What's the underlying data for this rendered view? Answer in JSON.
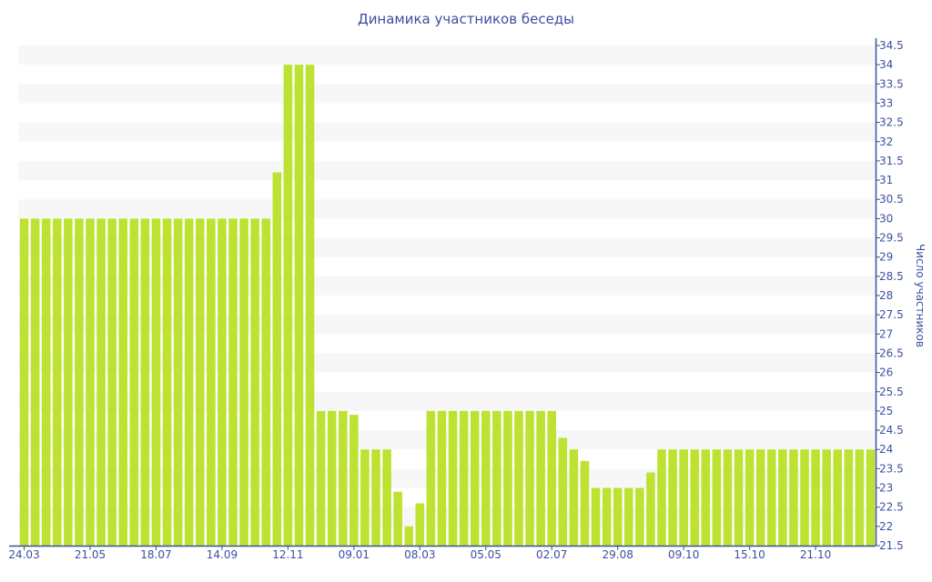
{
  "chart_data": {
    "type": "bar",
    "title": "Динамика участников беседы",
    "xlabel": "",
    "ylabel": "Число участников",
    "ylim": [
      21.5,
      34.5
    ],
    "ytick_step": 0.5,
    "y_axis_position": "right",
    "grid": "alternating horizontal bands",
    "bar_color": "#bde232",
    "axis_color": "#3d4f9f",
    "x_tick_labels": [
      {
        "index": 0,
        "label": "24.03"
      },
      {
        "index": 6,
        "label": "21.05"
      },
      {
        "index": 12,
        "label": "18.07"
      },
      {
        "index": 18,
        "label": "14.09"
      },
      {
        "index": 24,
        "label": "12.11"
      },
      {
        "index": 30,
        "label": "09.01"
      },
      {
        "index": 36,
        "label": "08.03"
      },
      {
        "index": 42,
        "label": "05.05"
      },
      {
        "index": 48,
        "label": "02.07"
      },
      {
        "index": 54,
        "label": "29.08"
      },
      {
        "index": 60,
        "label": "09.10"
      },
      {
        "index": 66,
        "label": "15.10"
      },
      {
        "index": 72,
        "label": "21.10"
      }
    ],
    "values": [
      30,
      30,
      30,
      30,
      30,
      30,
      30,
      30,
      30,
      30,
      30,
      30,
      30,
      30,
      30,
      30,
      30,
      30,
      30,
      30,
      30,
      30,
      30,
      31.2,
      34,
      34,
      34,
      25,
      25,
      25,
      24.9,
      24,
      24,
      24,
      22.9,
      22,
      22.6,
      25,
      25,
      25,
      25,
      25,
      25,
      25,
      25,
      25,
      25,
      25,
      25,
      24.3,
      24,
      23.7,
      23,
      23,
      23,
      23,
      23,
      23.4,
      24,
      24,
      24,
      24,
      24,
      24,
      24,
      24,
      24,
      24,
      24,
      24,
      24,
      24,
      24,
      24,
      24,
      24,
      24,
      24
    ]
  }
}
